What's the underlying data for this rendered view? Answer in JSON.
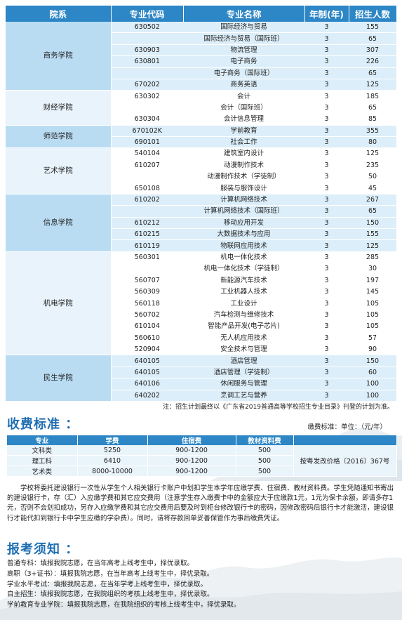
{
  "table": {
    "headers": [
      "院系",
      "专业代码",
      "专业名称",
      "年制(年)",
      "招生人数"
    ],
    "colleges": [
      {
        "name": "商务学院",
        "rows": [
          {
            "code": "630502",
            "name": "国际经济与贸易",
            "years": "3",
            "count": "155"
          },
          {
            "code": "",
            "name": "国际经济与贸易（国际班）",
            "years": "3",
            "count": "65"
          },
          {
            "code": "630903",
            "name": "物流管理",
            "years": "3",
            "count": "307"
          },
          {
            "code": "630801",
            "name": "电子商务",
            "years": "3",
            "count": "226"
          },
          {
            "code": "",
            "name": "电子商务（国际班）",
            "years": "3",
            "count": "65"
          },
          {
            "code": "670202",
            "name": "商务英语",
            "years": "3",
            "count": "125"
          }
        ]
      },
      {
        "name": "财经学院",
        "rows": [
          {
            "code": "630302",
            "name": "会计",
            "years": "3",
            "count": "185"
          },
          {
            "code": "",
            "name": "会计（国际班）",
            "years": "3",
            "count": "65"
          },
          {
            "code": "630304",
            "name": "会计信息管理",
            "years": "3",
            "count": "85"
          }
        ]
      },
      {
        "name": "师范学院",
        "rows": [
          {
            "code": "670102K",
            "name": "学前教育",
            "years": "3",
            "count": "355"
          },
          {
            "code": "690101",
            "name": "社会工作",
            "years": "3",
            "count": "80"
          }
        ]
      },
      {
        "name": "艺术学院",
        "rows": [
          {
            "code": "540104",
            "name": "建筑室内设计",
            "years": "3",
            "count": "125"
          },
          {
            "code": "610207",
            "name": "动漫制作技术",
            "years": "3",
            "count": "235"
          },
          {
            "code": "",
            "name": "动漫制作技术（学徒制）",
            "years": "3",
            "count": "50"
          },
          {
            "code": "650108",
            "name": "服装与服饰设计",
            "years": "3",
            "count": "45"
          }
        ]
      },
      {
        "name": "信息学院",
        "rows": [
          {
            "code": "610202",
            "name": "计算机网络技术",
            "years": "3",
            "count": "267"
          },
          {
            "code": "",
            "name": "计算机网络技术（国际班）",
            "years": "3",
            "count": "65"
          },
          {
            "code": "610212",
            "name": "移动应用开发",
            "years": "3",
            "count": "150"
          },
          {
            "code": "610215",
            "name": "大数据技术与应用",
            "years": "3",
            "count": "155"
          },
          {
            "code": "610119",
            "name": "物联网应用技术",
            "years": "3",
            "count": "125"
          }
        ]
      },
      {
        "name": "机电学院",
        "rows": [
          {
            "code": "560301",
            "name": "机电一体化技术",
            "years": "3",
            "count": "285"
          },
          {
            "code": "",
            "name": "机电一体化技术（学徒制）",
            "years": "3",
            "count": "30"
          },
          {
            "code": "560707",
            "name": "新能源汽车技术",
            "years": "3",
            "count": "197"
          },
          {
            "code": "560309",
            "name": "工业机器人技术",
            "years": "3",
            "count": "145"
          },
          {
            "code": "560118",
            "name": "工业设计",
            "years": "3",
            "count": "105"
          },
          {
            "code": "560702",
            "name": "汽车检测与维修技术",
            "years": "3",
            "count": "105"
          },
          {
            "code": "610104",
            "name": "智能产品开发(电子芯片)",
            "years": "3",
            "count": "105"
          },
          {
            "code": "560610",
            "name": "无人机应用技术",
            "years": "3",
            "count": "57"
          },
          {
            "code": "520904",
            "name": "安全技术与管理",
            "years": "3",
            "count": "90"
          }
        ]
      },
      {
        "name": "民生学院",
        "rows": [
          {
            "code": "640105",
            "name": "酒店管理",
            "years": "3",
            "count": "150"
          },
          {
            "code": "640105",
            "name": "酒店管理（学徒制）",
            "years": "3",
            "count": "60"
          },
          {
            "code": "640106",
            "name": "休闲服务与管理",
            "years": "3",
            "count": "100"
          },
          {
            "code": "640202",
            "name": "烹调工艺与营养",
            "years": "3",
            "count": "100"
          }
        ]
      }
    ]
  },
  "note": "注：招生计划最终以《广东省2019普通高等学校招生专业目录》刊登的计划为准。",
  "fees": {
    "title": "收费标准 ：",
    "unit": "缴费标准：单位：（元/年）",
    "headers": [
      "专业",
      "学费",
      "住宿费",
      "教材资料费",
      ""
    ],
    "rows": [
      {
        "major": "文科类",
        "tuition": "5250",
        "dorm": "900-1200",
        "materials": "500"
      },
      {
        "major": "理工科",
        "tuition": "6410",
        "dorm": "900-1200",
        "materials": "500"
      },
      {
        "major": "艺术类",
        "tuition": "8000-10000",
        "dorm": "900-1200",
        "materials": "500"
      }
    ],
    "basis": "按粤发改价格〔2016〕367号"
  },
  "paragraph": "学校将委托建设银行一次性从学生个人相关银行卡账户中划扣学生本学年应缴学费、住宿费、教材资料费。学生凭随通知书寄出的建设银行卡，存（汇）入应缴学费和其它应交费用（注意学生存入缴费卡中的金额应大于应缴款1元，1元为保卡余额，即请多存1元，否则不会划扣成功，另存入应缴学费和其它应交费用后要及时到柜台修改银行卡的密码，因修改密码后银行卡才能激活，建设银行才能代扣到银行卡中学生应缴的学杂费）。同时，请将存款回单妥善保管作为事后缴费凭证。",
  "notice": {
    "title": "报考须知 ：",
    "items": [
      "普通专科：填报我院志愿，在当年高考上线考生中，择优录取。",
      "高职（3+证书）：填报我院志愿，在当年高考上线考生中，择优录取。",
      "学业水平考试：填报我院志愿，在当年学考上线考生中，择优录取。",
      "自主招生：填报我院志愿，在我院组织的考核上线考生中，择优录取。",
      "学前教育专业学院：填报我院志愿，在我院组织的考核上线考生中，择优录取。"
    ]
  },
  "colors": {
    "header_blue": "#2d86c5",
    "title_blue": "#1f6fb2",
    "row_shade": "#dceef9",
    "college_shade": "#b9dcf3"
  }
}
